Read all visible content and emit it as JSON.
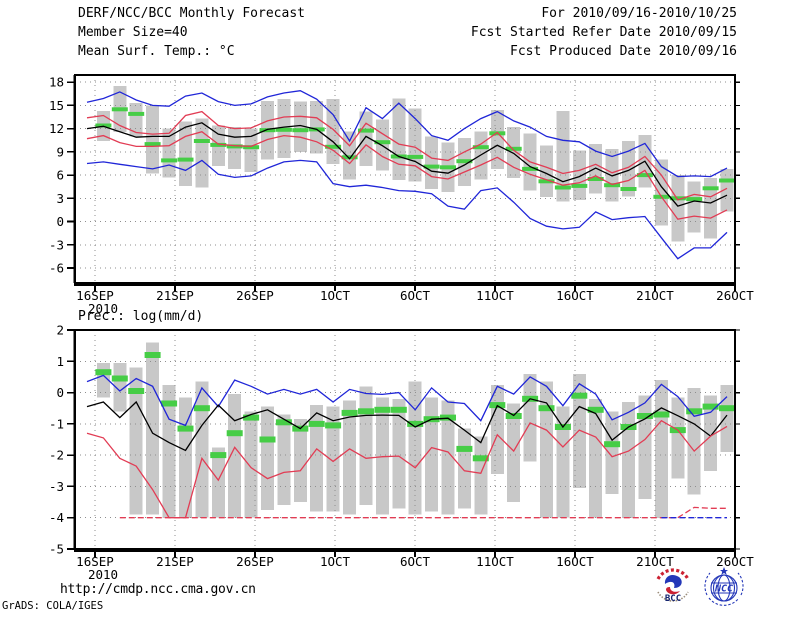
{
  "header": {
    "title": "DERF/NCC/BCC Monthly Forecast",
    "member_size": "Member Size=40",
    "valid_range": "For 2010/09/16-2010/10/25",
    "refer_date": "Fcst Started Refer Date 2010/09/15",
    "produced_date": "Fcst Produced Date 2010/09/16"
  },
  "footer": {
    "url": "http://cmdp.ncc.cma.gov.cn",
    "credit": "GrADS: COLA/IGES",
    "logos": [
      {
        "label": "BCC"
      },
      {
        "label": "NCC"
      }
    ]
  },
  "colors": {
    "black": "#000000",
    "blue": "#2026d8",
    "red": "#e23c54",
    "green": "#46cd46",
    "bar": "#c8c8c8",
    "grid": "#8e8e8e"
  },
  "chart_data": [
    {
      "type": "line",
      "name": "temperature-forecast",
      "title": "Mean Surf. Temp.: °C",
      "x_year_label": "2010",
      "x_tick_labels": [
        "16SEP",
        "21SEP",
        "26SEP",
        "1OCT",
        "6OCT",
        "11OCT",
        "16OCT",
        "21OCT",
        "26OCT"
      ],
      "y_ticks": [
        18,
        15,
        12,
        9,
        6,
        3,
        0,
        -3,
        -6
      ],
      "ylim": [
        -7.94,
        18.93
      ],
      "grid": true,
      "legend": "none",
      "n_points": 40,
      "series": [
        {
          "name": "ensemble-max",
          "color": "blue",
          "values": [
            15.4,
            15.9,
            16.75,
            15.7,
            15.0,
            14.9,
            16.2,
            16.6,
            15.5,
            15.0,
            15.2,
            16.1,
            16.6,
            16.9,
            15.8,
            13.8,
            10.4,
            14.7,
            13.3,
            15.3,
            13.3,
            11.1,
            10.5,
            12.0,
            13.3,
            14.2,
            13.0,
            12.2,
            11.0,
            10.5,
            10.3,
            9.1,
            8.4,
            9.1,
            10.1,
            7.1,
            5.8,
            5.9,
            5.8,
            6.9
          ]
        },
        {
          "name": "upper-quartile",
          "color": "red",
          "values": [
            13.4,
            13.7,
            12.4,
            11.5,
            11.3,
            11.4,
            13.7,
            14.2,
            12.4,
            12.0,
            12.1,
            13.0,
            13.5,
            13.6,
            13.4,
            11.9,
            9.8,
            12.7,
            11.35,
            10.0,
            9.6,
            8.2,
            7.9,
            9.0,
            10.0,
            11.5,
            9.2,
            7.7,
            7.0,
            6.2,
            6.6,
            7.4,
            6.3,
            7.0,
            8.4,
            6.0,
            2.8,
            3.5,
            3.2,
            4.3
          ]
        },
        {
          "name": "ensemble-mean",
          "color": "black",
          "values": [
            12.0,
            12.3,
            11.6,
            10.9,
            11.0,
            11.0,
            12.2,
            12.75,
            11.3,
            10.9,
            11.0,
            11.9,
            12.2,
            12.4,
            11.9,
            10.3,
            8.1,
            11.0,
            9.8,
            8.4,
            7.75,
            6.5,
            6.25,
            7.3,
            8.6,
            9.85,
            8.8,
            7.1,
            6.2,
            5.15,
            5.8,
            6.9,
            5.9,
            6.6,
            7.8,
            4.5,
            2.0,
            2.65,
            2.4,
            3.4
          ]
        },
        {
          "name": "lower-quartile",
          "color": "red",
          "values": [
            10.7,
            11.1,
            10.2,
            9.7,
            9.7,
            9.8,
            11.0,
            11.6,
            10.0,
            9.8,
            9.7,
            10.6,
            11.1,
            10.9,
            10.3,
            9.2,
            7.5,
            9.9,
            8.4,
            7.4,
            7.2,
            5.8,
            5.5,
            6.4,
            7.3,
            8.3,
            7.0,
            6.1,
            5.4,
            4.7,
            5.0,
            5.9,
            4.8,
            5.3,
            6.6,
            3.2,
            0.3,
            0.7,
            0.45,
            1.5
          ]
        },
        {
          "name": "ensemble-min",
          "color": "blue",
          "values": [
            7.5,
            7.7,
            7.4,
            7.1,
            6.8,
            7.3,
            6.6,
            7.9,
            6.1,
            5.7,
            5.9,
            6.9,
            7.7,
            7.9,
            7.7,
            4.9,
            4.5,
            4.7,
            4.4,
            4.0,
            3.9,
            3.6,
            2.0,
            1.6,
            4.0,
            4.35,
            2.5,
            0.4,
            -0.6,
            -0.95,
            -0.75,
            1.25,
            0.25,
            0.5,
            0.65,
            -2.1,
            -4.8,
            -3.4,
            -3.4,
            -1.4
          ]
        }
      ],
      "green_dashes": [
        null,
        12.4,
        14.5,
        13.9,
        10.0,
        7.9,
        8.0,
        10.4,
        9.9,
        9.7,
        9.6,
        11.8,
        11.85,
        11.8,
        11.9,
        9.65,
        8.3,
        11.75,
        10.25,
        8.4,
        8.35,
        7.1,
        7.0,
        7.8,
        9.6,
        11.4,
        9.4,
        6.8,
        5.2,
        4.4,
        4.6,
        5.5,
        4.7,
        4.2,
        6.0,
        3.2,
        3.0,
        2.9,
        4.3,
        5.3
      ],
      "bars": [
        null,
        [
          10.4,
          14.3
        ],
        [
          11.6,
          17.5
        ],
        [
          11.0,
          15.3
        ],
        [
          6.2,
          15.0
        ],
        [
          5.7,
          12.0
        ],
        [
          4.6,
          12.9
        ],
        [
          4.4,
          13.3
        ],
        [
          7.2,
          12.4
        ],
        [
          6.8,
          12.2
        ],
        [
          6.4,
          12.0
        ],
        [
          8.0,
          15.6
        ],
        [
          8.2,
          15.8
        ],
        [
          9.0,
          15.5
        ],
        [
          8.8,
          15.6
        ],
        [
          7.4,
          15.8
        ],
        [
          5.4,
          11.6
        ],
        [
          7.2,
          14.2
        ],
        [
          6.6,
          13.2
        ],
        [
          5.4,
          15.9
        ],
        [
          5.2,
          14.6
        ],
        [
          4.2,
          11.0
        ],
        [
          3.8,
          10.2
        ],
        [
          4.6,
          10.8
        ],
        [
          5.4,
          11.6
        ],
        [
          6.8,
          14.4
        ],
        [
          5.6,
          12.2
        ],
        [
          4.0,
          11.4
        ],
        [
          3.2,
          9.8
        ],
        [
          2.6,
          14.3
        ],
        [
          2.8,
          9.2
        ],
        [
          3.6,
          10.0
        ],
        [
          2.6,
          9.4
        ],
        [
          3.2,
          10.4
        ],
        [
          4.4,
          11.2
        ],
        [
          -0.5,
          8.0
        ],
        [
          -2.6,
          6.0
        ],
        [
          -1.4,
          5.2
        ],
        [
          -2.2,
          5.6
        ],
        [
          1.3,
          6.8
        ]
      ]
    },
    {
      "type": "line",
      "name": "precipitation-forecast",
      "title": "Prec.: log(mm/d)",
      "x_year_label": "2010",
      "x_tick_labels": [
        "16SEP",
        "21SEP",
        "26SEP",
        "1OCT",
        "6OCT",
        "11OCT",
        "16OCT",
        "21OCT",
        "26OCT"
      ],
      "y_ticks": [
        2,
        1,
        0,
        -1,
        -2,
        -3,
        -4,
        -5
      ],
      "ylim": [
        -5,
        2
      ],
      "grid": true,
      "legend": "none",
      "n_points": 40,
      "series": [
        {
          "name": "ensemble-max",
          "color": "blue",
          "values": [
            0.35,
            0.55,
            0.05,
            0.45,
            0.2,
            -0.85,
            -1.05,
            0.15,
            -0.45,
            0.4,
            0.2,
            -0.05,
            0.1,
            -0.05,
            0.1,
            -0.3,
            0.1,
            -0.03,
            -0.06,
            0.0,
            -0.55,
            0.15,
            -0.3,
            -0.35,
            -0.9,
            0.2,
            -0.05,
            0.5,
            0.2,
            -0.42,
            0.28,
            -0.05,
            -0.87,
            -0.63,
            -0.33,
            0.26,
            -0.13,
            -0.76,
            -0.63,
            -0.13
          ]
        },
        {
          "name": "ensemble-mean",
          "color": "black",
          "values": [
            -0.45,
            -0.3,
            -0.8,
            -0.3,
            -1.3,
            -1.6,
            -1.85,
            -1.05,
            -0.4,
            -0.9,
            -0.7,
            -0.55,
            -0.85,
            -1.15,
            -0.65,
            -0.9,
            -0.78,
            -0.73,
            -0.72,
            -0.73,
            -1.1,
            -0.85,
            -0.82,
            -1.2,
            -1.6,
            -0.42,
            -0.73,
            -0.2,
            -0.33,
            -1.1,
            -0.45,
            -0.67,
            -1.52,
            -1.1,
            -0.84,
            -0.49,
            -0.74,
            -1.0,
            -1.39,
            -0.72
          ]
        },
        {
          "name": "lower-quartile",
          "color": "red",
          "values": [
            -1.3,
            -1.45,
            -2.1,
            -2.35,
            -3.1,
            -4.0,
            -4.0,
            -2.1,
            -2.8,
            -1.75,
            -2.4,
            -2.75,
            -2.55,
            -2.5,
            -1.8,
            -2.2,
            -1.8,
            -2.1,
            -2.05,
            -2.03,
            -2.4,
            -1.76,
            -1.9,
            -2.5,
            -2.58,
            -1.35,
            -1.87,
            -0.97,
            -1.2,
            -1.74,
            -1.2,
            -1.42,
            -2.05,
            -1.87,
            -1.5,
            -0.9,
            -1.2,
            -1.87,
            -1.39,
            -1.08
          ]
        },
        {
          "name": "ensemble-min-floor",
          "color": "red",
          "dashed": true,
          "values": [
            null,
            null,
            -4,
            -4,
            -4,
            -4,
            -4,
            -4,
            -4,
            -4,
            -4,
            -4,
            -4,
            -4,
            -4,
            -4,
            -4,
            -4,
            -4,
            -4,
            -4,
            -4,
            -4,
            -4,
            -4,
            -4,
            -4,
            -4,
            -4,
            -4,
            -4,
            -4,
            -4,
            -4,
            -4,
            -4,
            -4,
            -3.67,
            -3.7,
            -3.7
          ]
        },
        {
          "name": "min-floor-blue-segment",
          "color": "blue",
          "dashed": true,
          "values": [
            null,
            null,
            null,
            null,
            null,
            null,
            null,
            null,
            null,
            null,
            null,
            null,
            null,
            null,
            null,
            null,
            null,
            null,
            null,
            null,
            null,
            null,
            null,
            null,
            null,
            null,
            null,
            null,
            null,
            null,
            null,
            null,
            null,
            null,
            null,
            -4,
            -4,
            -4,
            -4,
            -4
          ]
        }
      ],
      "green_dashes": [
        null,
        0.65,
        0.45,
        0.05,
        1.2,
        -0.35,
        -1.15,
        -0.5,
        -2.0,
        -1.3,
        -0.8,
        -1.5,
        -0.95,
        -1.15,
        -1.0,
        -1.05,
        -0.65,
        -0.6,
        -0.55,
        -0.55,
        -1.0,
        -0.85,
        -0.8,
        -1.8,
        -2.1,
        -0.4,
        -0.75,
        -0.2,
        -0.5,
        -1.1,
        -0.1,
        -0.55,
        -1.65,
        -1.1,
        -0.75,
        -0.7,
        -1.2,
        -0.6,
        -0.45,
        -0.5
      ],
      "bars": [
        null,
        [
          -0.15,
          0.95
        ],
        [
          -0.6,
          0.95
        ],
        [
          -3.9,
          0.8
        ],
        [
          -3.9,
          1.6
        ],
        [
          -4,
          0.25
        ],
        [
          -4,
          -0.15
        ],
        [
          -4,
          0.35
        ],
        [
          -4,
          -1.75
        ],
        [
          -4,
          -0.05
        ],
        [
          -4,
          -0.6
        ],
        [
          -3.75,
          -0.45
        ],
        [
          -3.6,
          -0.7
        ],
        [
          -3.5,
          -0.85
        ],
        [
          -3.8,
          -0.4
        ],
        [
          -3.8,
          -0.45
        ],
        [
          -3.9,
          -0.25
        ],
        [
          -3.6,
          0.2
        ],
        [
          -3.9,
          -0.15
        ],
        [
          -3.7,
          -0.2
        ],
        [
          -3.9,
          0.35
        ],
        [
          -3.8,
          -0.15
        ],
        [
          -3.9,
          -0.25
        ],
        [
          -3.7,
          -1.15
        ],
        [
          -3.9,
          -1.4
        ],
        [
          -2.6,
          0.25
        ],
        [
          -3.5,
          -0.35
        ],
        [
          -2.2,
          0.6
        ],
        [
          -4,
          0.35
        ],
        [
          -4,
          -0.45
        ],
        [
          -3.05,
          0.6
        ],
        [
          -4,
          -0.2
        ],
        [
          -3.25,
          -0.6
        ],
        [
          -4,
          -0.3
        ],
        [
          -3.4,
          -0.1
        ],
        [
          -4,
          0.4
        ],
        [
          -2.75,
          -0.15
        ],
        [
          -3.25,
          0.15
        ],
        [
          -2.5,
          -0.1
        ],
        [
          -1.9,
          0.25
        ]
      ]
    }
  ]
}
